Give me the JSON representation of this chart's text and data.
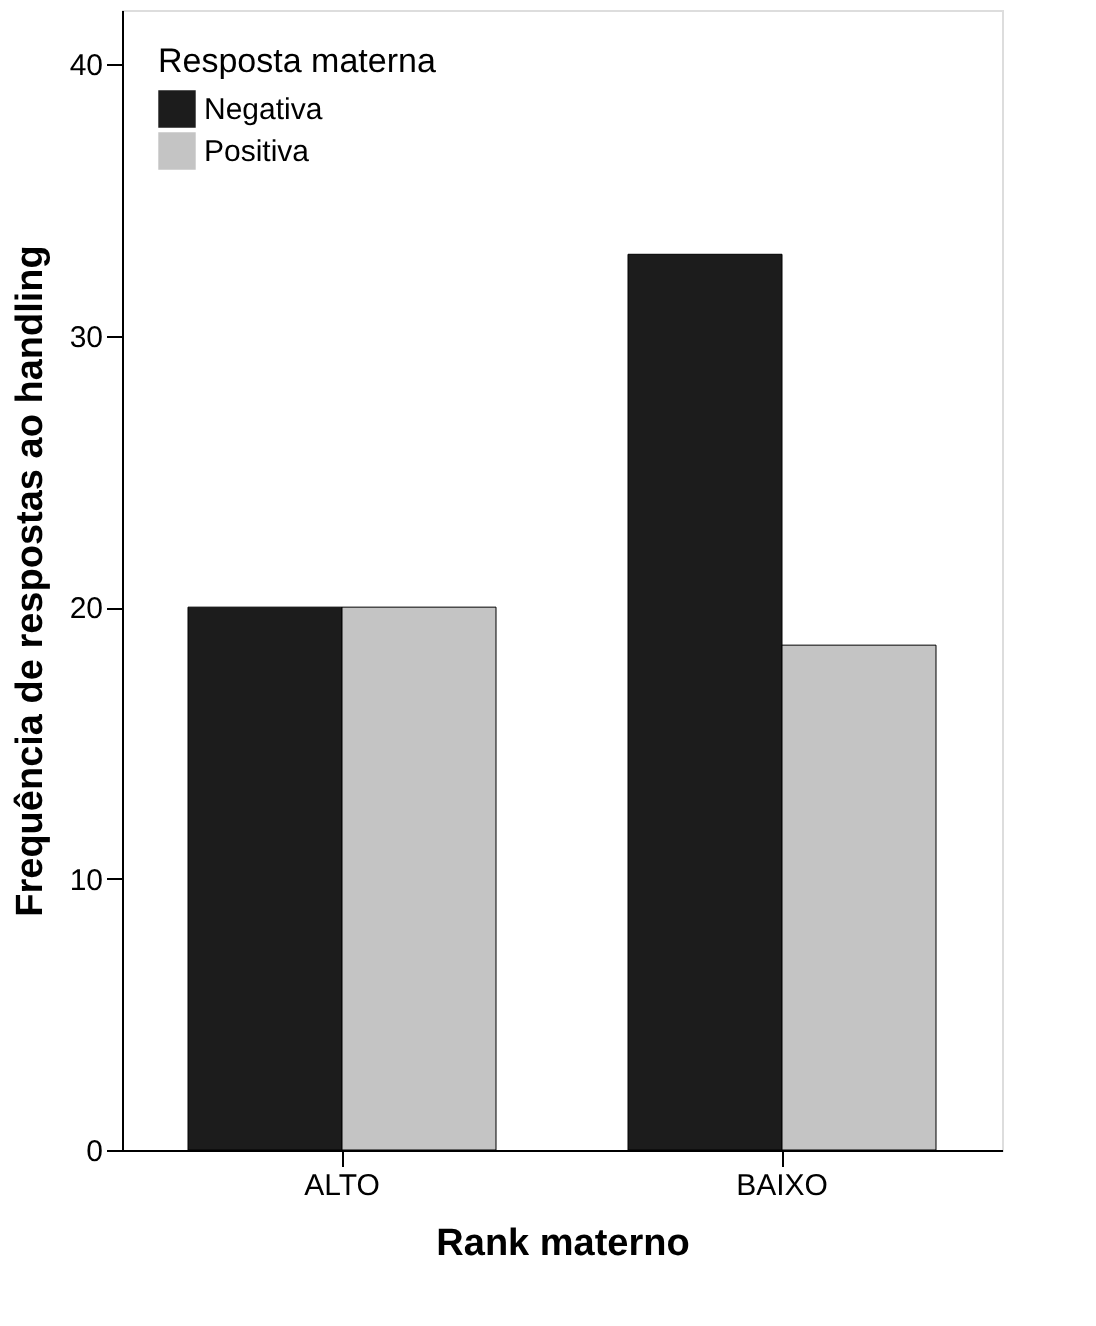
{
  "chart_data": {
    "type": "bar",
    "xlabel": "Rank materno",
    "ylabel": "Frequência de respostas ao handling",
    "legend_title": "Resposta materna",
    "categories": [
      "ALTO",
      "BAIXO"
    ],
    "series": [
      {
        "name": "Negativa",
        "color": "#1c1c1c",
        "values": [
          20,
          33
        ]
      },
      {
        "name": "Positiva",
        "color": "#c4c4c4",
        "values": [
          20,
          18.6
        ]
      }
    ],
    "ylim": [
      0,
      42
    ],
    "yticks": [
      0,
      10,
      20,
      30,
      40
    ],
    "grid": false,
    "legend": "top left"
  }
}
